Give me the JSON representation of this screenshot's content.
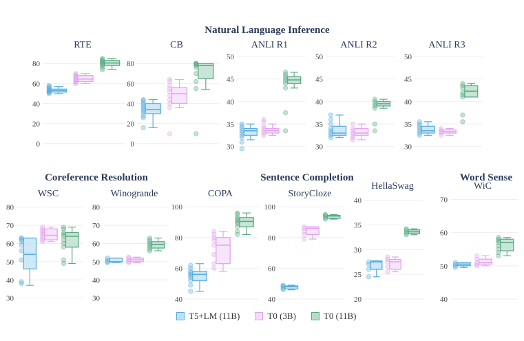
{
  "colors": {
    "series": [
      "#5aaedf",
      "#e2a5ef",
      "#5aab86"
    ],
    "fills": [
      "#bfe0f4",
      "#f4dcf9",
      "#b7dcc9"
    ],
    "grid": "#eeeeee",
    "axis_text": "#444444",
    "title_text": "#2a3a5a"
  },
  "legend": {
    "items": [
      {
        "label": "T5+LM (11B)"
      },
      {
        "label": "T0 (3B)"
      },
      {
        "label": "T0 (11B)"
      }
    ]
  },
  "groups": [
    {
      "title": "Natural Language Inference"
    },
    {
      "title": "Coreference Resolution"
    },
    {
      "title": "Sentence Completion"
    },
    {
      "title": "Word Sense"
    }
  ],
  "chart_data": [
    {
      "type": "box",
      "group": "Natural Language Inference",
      "title": "RTE",
      "ylim": [
        -5,
        87
      ],
      "yticks": [
        0,
        20,
        40,
        60,
        80
      ],
      "series": [
        {
          "name": "T5+LM (11B)",
          "box": {
            "min": 50,
            "q1": 51.5,
            "median": 53,
            "q3": 54.5,
            "max": 57
          },
          "points": [
            50,
            51,
            52,
            52,
            53,
            53,
            54,
            55,
            56,
            57,
            58
          ]
        },
        {
          "name": "T0 (3B)",
          "box": {
            "min": 60,
            "q1": 62,
            "median": 64.5,
            "q3": 68,
            "max": 70
          },
          "points": [
            60,
            61,
            62,
            63,
            64,
            65,
            66,
            67,
            68,
            69,
            70
          ]
        },
        {
          "name": "T0 (11B)",
          "box": {
            "min": 74,
            "q1": 78,
            "median": 80.5,
            "q3": 83,
            "max": 85
          },
          "points": [
            74,
            76,
            78,
            79,
            80,
            81,
            82,
            83,
            84,
            85
          ]
        }
      ]
    },
    {
      "type": "box",
      "group": "Natural Language Inference",
      "title": "CB",
      "ylim": [
        -5,
        87
      ],
      "yticks": [
        0,
        20,
        40,
        60,
        80
      ],
      "series": [
        {
          "name": "T5+LM (11B)",
          "box": {
            "min": 16,
            "q1": 30,
            "median": 34,
            "q3": 40,
            "max": 44
          },
          "points": [
            16,
            26,
            28,
            31,
            33,
            35,
            37,
            39,
            41,
            43,
            44
          ]
        },
        {
          "name": "T0 (3B)",
          "box": {
            "min": 36,
            "q1": 40,
            "median": 50,
            "q3": 56,
            "max": 64
          },
          "points": [
            10,
            36,
            40,
            44,
            48,
            52,
            55,
            58,
            62,
            64
          ]
        },
        {
          "name": "T0 (11B)",
          "box": {
            "min": 54,
            "q1": 65,
            "median": 78,
            "q3": 80,
            "max": 80
          },
          "points": [
            10,
            55,
            62,
            70,
            76,
            78,
            79,
            80,
            80,
            80
          ]
        }
      ]
    },
    {
      "type": "box",
      "group": "Natural Language Inference",
      "title": "ANLI R1",
      "ylim": [
        29.5,
        50
      ],
      "yticks": [
        30,
        35,
        40,
        45,
        50
      ],
      "series": [
        {
          "name": "T5+LM (11B)",
          "box": {
            "min": 31.5,
            "q1": 32.5,
            "median": 33.5,
            "q3": 34,
            "max": 35
          },
          "points": [
            29.5,
            31,
            32,
            32.5,
            33,
            33.5,
            34,
            34.5,
            35
          ]
        },
        {
          "name": "T0 (3B)",
          "box": {
            "min": 32.5,
            "q1": 33,
            "median": 33.5,
            "q3": 34,
            "max": 35
          },
          "points": [
            32.5,
            33,
            33.5,
            34,
            34.5,
            35.5,
            36
          ]
        },
        {
          "name": "T0 (11B)",
          "box": {
            "min": 43,
            "q1": 44,
            "median": 44.8,
            "q3": 45.5,
            "max": 46.5
          },
          "points": [
            33.5,
            37.5,
            43,
            44,
            44.5,
            45,
            45.5,
            46,
            46.5
          ]
        }
      ]
    },
    {
      "type": "box",
      "group": "Natural Language Inference",
      "title": "ANLI R2",
      "ylim": [
        29.5,
        50
      ],
      "yticks": [
        30,
        35,
        40,
        45,
        50
      ],
      "series": [
        {
          "name": "T5+LM (11B)",
          "box": {
            "min": 32,
            "q1": 32.5,
            "median": 33,
            "q3": 34.5,
            "max": 37
          },
          "points": [
            32,
            32.5,
            33,
            33.5,
            34,
            35,
            36,
            37
          ]
        },
        {
          "name": "T0 (3B)",
          "box": {
            "min": 31.5,
            "q1": 32.5,
            "median": 33,
            "q3": 34,
            "max": 35
          },
          "points": [
            31.5,
            32,
            32.5,
            33,
            33.5,
            34,
            35
          ]
        },
        {
          "name": "T0 (11B)",
          "box": {
            "min": 38.5,
            "q1": 39,
            "median": 39.5,
            "q3": 40,
            "max": 40.5
          },
          "points": [
            33.5,
            35,
            38.5,
            39,
            39.5,
            40,
            40.5
          ]
        }
      ]
    },
    {
      "type": "box",
      "group": "Natural Language Inference",
      "title": "ANLI R3",
      "ylim": [
        29.5,
        50
      ],
      "yticks": [
        30,
        35,
        40,
        45,
        50
      ],
      "series": [
        {
          "name": "T5+LM (11B)",
          "box": {
            "min": 32.5,
            "q1": 33,
            "median": 33.5,
            "q3": 34.5,
            "max": 35.5
          },
          "points": [
            32.5,
            33,
            33.5,
            34,
            34.5,
            35,
            35.5
          ]
        },
        {
          "name": "T0 (3B)",
          "box": {
            "min": 32.5,
            "q1": 33,
            "median": 33.3,
            "q3": 33.7,
            "max": 34
          },
          "points": [
            32.5,
            33,
            33.3,
            33.6,
            34
          ]
        },
        {
          "name": "T0 (11B)",
          "box": {
            "min": 41,
            "q1": 41,
            "median": 42.3,
            "q3": 43.5,
            "max": 44
          },
          "points": [
            35.5,
            37,
            41,
            41.5,
            42,
            43,
            43.5,
            44
          ]
        }
      ]
    },
    {
      "type": "box",
      "group": "Coreference Resolution",
      "title": "WSC",
      "ylim": [
        29.5,
        81
      ],
      "yticks": [
        30,
        40,
        50,
        60,
        70,
        80
      ],
      "series": [
        {
          "name": "T5+LM (11B)",
          "box": {
            "min": 37,
            "q1": 46,
            "median": 54,
            "q3": 63,
            "max": 63
          },
          "points": [
            38,
            39,
            51,
            56,
            59,
            61,
            62,
            63,
            63
          ]
        },
        {
          "name": "T0 (3B)",
          "box": {
            "min": 61,
            "q1": 62,
            "median": 64.5,
            "q3": 68,
            "max": 69
          },
          "points": [
            61,
            62,
            63,
            64,
            65,
            66,
            67,
            68,
            69
          ]
        },
        {
          "name": "T0 (11B)",
          "box": {
            "min": 49,
            "q1": 58,
            "median": 64,
            "q3": 66,
            "max": 69
          },
          "points": [
            49,
            51,
            58,
            60,
            62,
            64,
            65,
            66,
            68,
            69
          ]
        }
      ]
    },
    {
      "type": "box",
      "group": "Coreference Resolution",
      "title": "Winogrande",
      "ylim": [
        29.5,
        81
      ],
      "yticks": [
        30,
        40,
        50,
        60,
        70,
        80
      ],
      "series": [
        {
          "name": "T5+LM (11B)",
          "box": {
            "min": 49.5,
            "q1": 49.7,
            "median": 50,
            "q3": 52,
            "max": 52
          },
          "points": [
            49.5,
            50,
            51,
            52
          ]
        },
        {
          "name": "T0 (3B)",
          "box": {
            "min": 49.5,
            "q1": 50,
            "median": 51,
            "q3": 52,
            "max": 52.5
          },
          "points": [
            49.5,
            50,
            51,
            52,
            52.5
          ]
        },
        {
          "name": "T0 (11B)",
          "box": {
            "min": 56,
            "q1": 57.5,
            "median": 59.5,
            "q3": 61,
            "max": 63
          },
          "points": [
            56,
            57,
            58,
            59,
            60,
            61,
            62,
            63
          ]
        }
      ]
    },
    {
      "type": "box",
      "group": "Sentence Completion",
      "title": "COPA",
      "ylim": [
        40,
        101
      ],
      "yticks": [
        40,
        60,
        80,
        100
      ],
      "series": [
        {
          "name": "T5+LM (11B)",
          "box": {
            "min": 45,
            "q1": 52,
            "median": 56,
            "q3": 58,
            "max": 63
          },
          "points": [
            45,
            49,
            52,
            54,
            55,
            56,
            57,
            58,
            60,
            62
          ]
        },
        {
          "name": "T0 (3B)",
          "box": {
            "min": 58,
            "q1": 63,
            "median": 75,
            "q3": 80,
            "max": 84
          },
          "points": [
            60,
            63,
            69,
            75,
            78,
            80,
            82,
            84
          ]
        },
        {
          "name": "T0 (11B)",
          "box": {
            "min": 82,
            "q1": 87,
            "median": 90.5,
            "q3": 93,
            "max": 96
          },
          "points": [
            82,
            84,
            87,
            89,
            90,
            91,
            92,
            93,
            95,
            96
          ]
        }
      ]
    },
    {
      "type": "box",
      "group": "Sentence Completion",
      "title": "StoryCloze",
      "ylim": [
        40,
        101
      ],
      "yticks": [
        40,
        60,
        80,
        100
      ],
      "series": [
        {
          "name": "T5+LM (11B)",
          "box": {
            "min": 46,
            "q1": 46.5,
            "median": 48,
            "q3": 48.5,
            "max": 49
          },
          "points": [
            46,
            47,
            48,
            48.5,
            49
          ]
        },
        {
          "name": "T0 (3B)",
          "box": {
            "min": 79,
            "q1": 82,
            "median": 86,
            "q3": 87,
            "max": 87
          },
          "points": [
            79,
            82,
            84,
            86,
            87
          ]
        },
        {
          "name": "T0 (11B)",
          "box": {
            "min": 92,
            "q1": 92.5,
            "median": 94,
            "q3": 94.5,
            "max": 95
          },
          "points": [
            92,
            93,
            94,
            94.5,
            95
          ]
        }
      ]
    },
    {
      "type": "box",
      "group": "Sentence Completion",
      "title": "HellaSwag",
      "ylim": [
        20,
        40.5
      ],
      "yticks": [
        20,
        25,
        30,
        35,
        40
      ],
      "series": [
        {
          "name": "T5+LM (11B)",
          "box": {
            "min": 24.5,
            "q1": 26,
            "median": 27.5,
            "q3": 27.7,
            "max": 27.7
          },
          "points": [
            24.5,
            26,
            27,
            27.5
          ]
        },
        {
          "name": "T0 (3B)",
          "box": {
            "min": 25.5,
            "q1": 26,
            "median": 27.5,
            "q3": 28,
            "max": 28.5
          },
          "points": [
            25.5,
            26.5,
            27.5,
            28,
            28.5
          ]
        },
        {
          "name": "T0 (11B)",
          "box": {
            "min": 33,
            "q1": 33.2,
            "median": 33.6,
            "q3": 34,
            "max": 34.2
          },
          "points": [
            33,
            33.3,
            33.6,
            34,
            34.2
          ]
        }
      ]
    },
    {
      "type": "box",
      "group": "Word Sense",
      "title": "WiC",
      "ylim": [
        40,
        70.5
      ],
      "yticks": [
        40,
        50,
        60,
        70
      ],
      "series": [
        {
          "name": "T5+LM (11B)",
          "box": {
            "min": 49.5,
            "q1": 50,
            "median": 50.5,
            "q3": 51,
            "max": 51
          },
          "points": [
            49.5,
            50,
            50.5,
            51
          ]
        },
        {
          "name": "T0 (3B)",
          "box": {
            "min": 50,
            "q1": 50.5,
            "median": 51,
            "q3": 52,
            "max": 53
          },
          "points": [
            50,
            50.5,
            51,
            52,
            53
          ]
        },
        {
          "name": "T0 (11B)",
          "box": {
            "min": 53,
            "q1": 54.5,
            "median": 57,
            "q3": 58,
            "max": 58.5
          },
          "points": [
            53,
            54,
            55,
            56,
            57,
            57.5,
            58,
            58.5
          ]
        }
      ]
    }
  ]
}
